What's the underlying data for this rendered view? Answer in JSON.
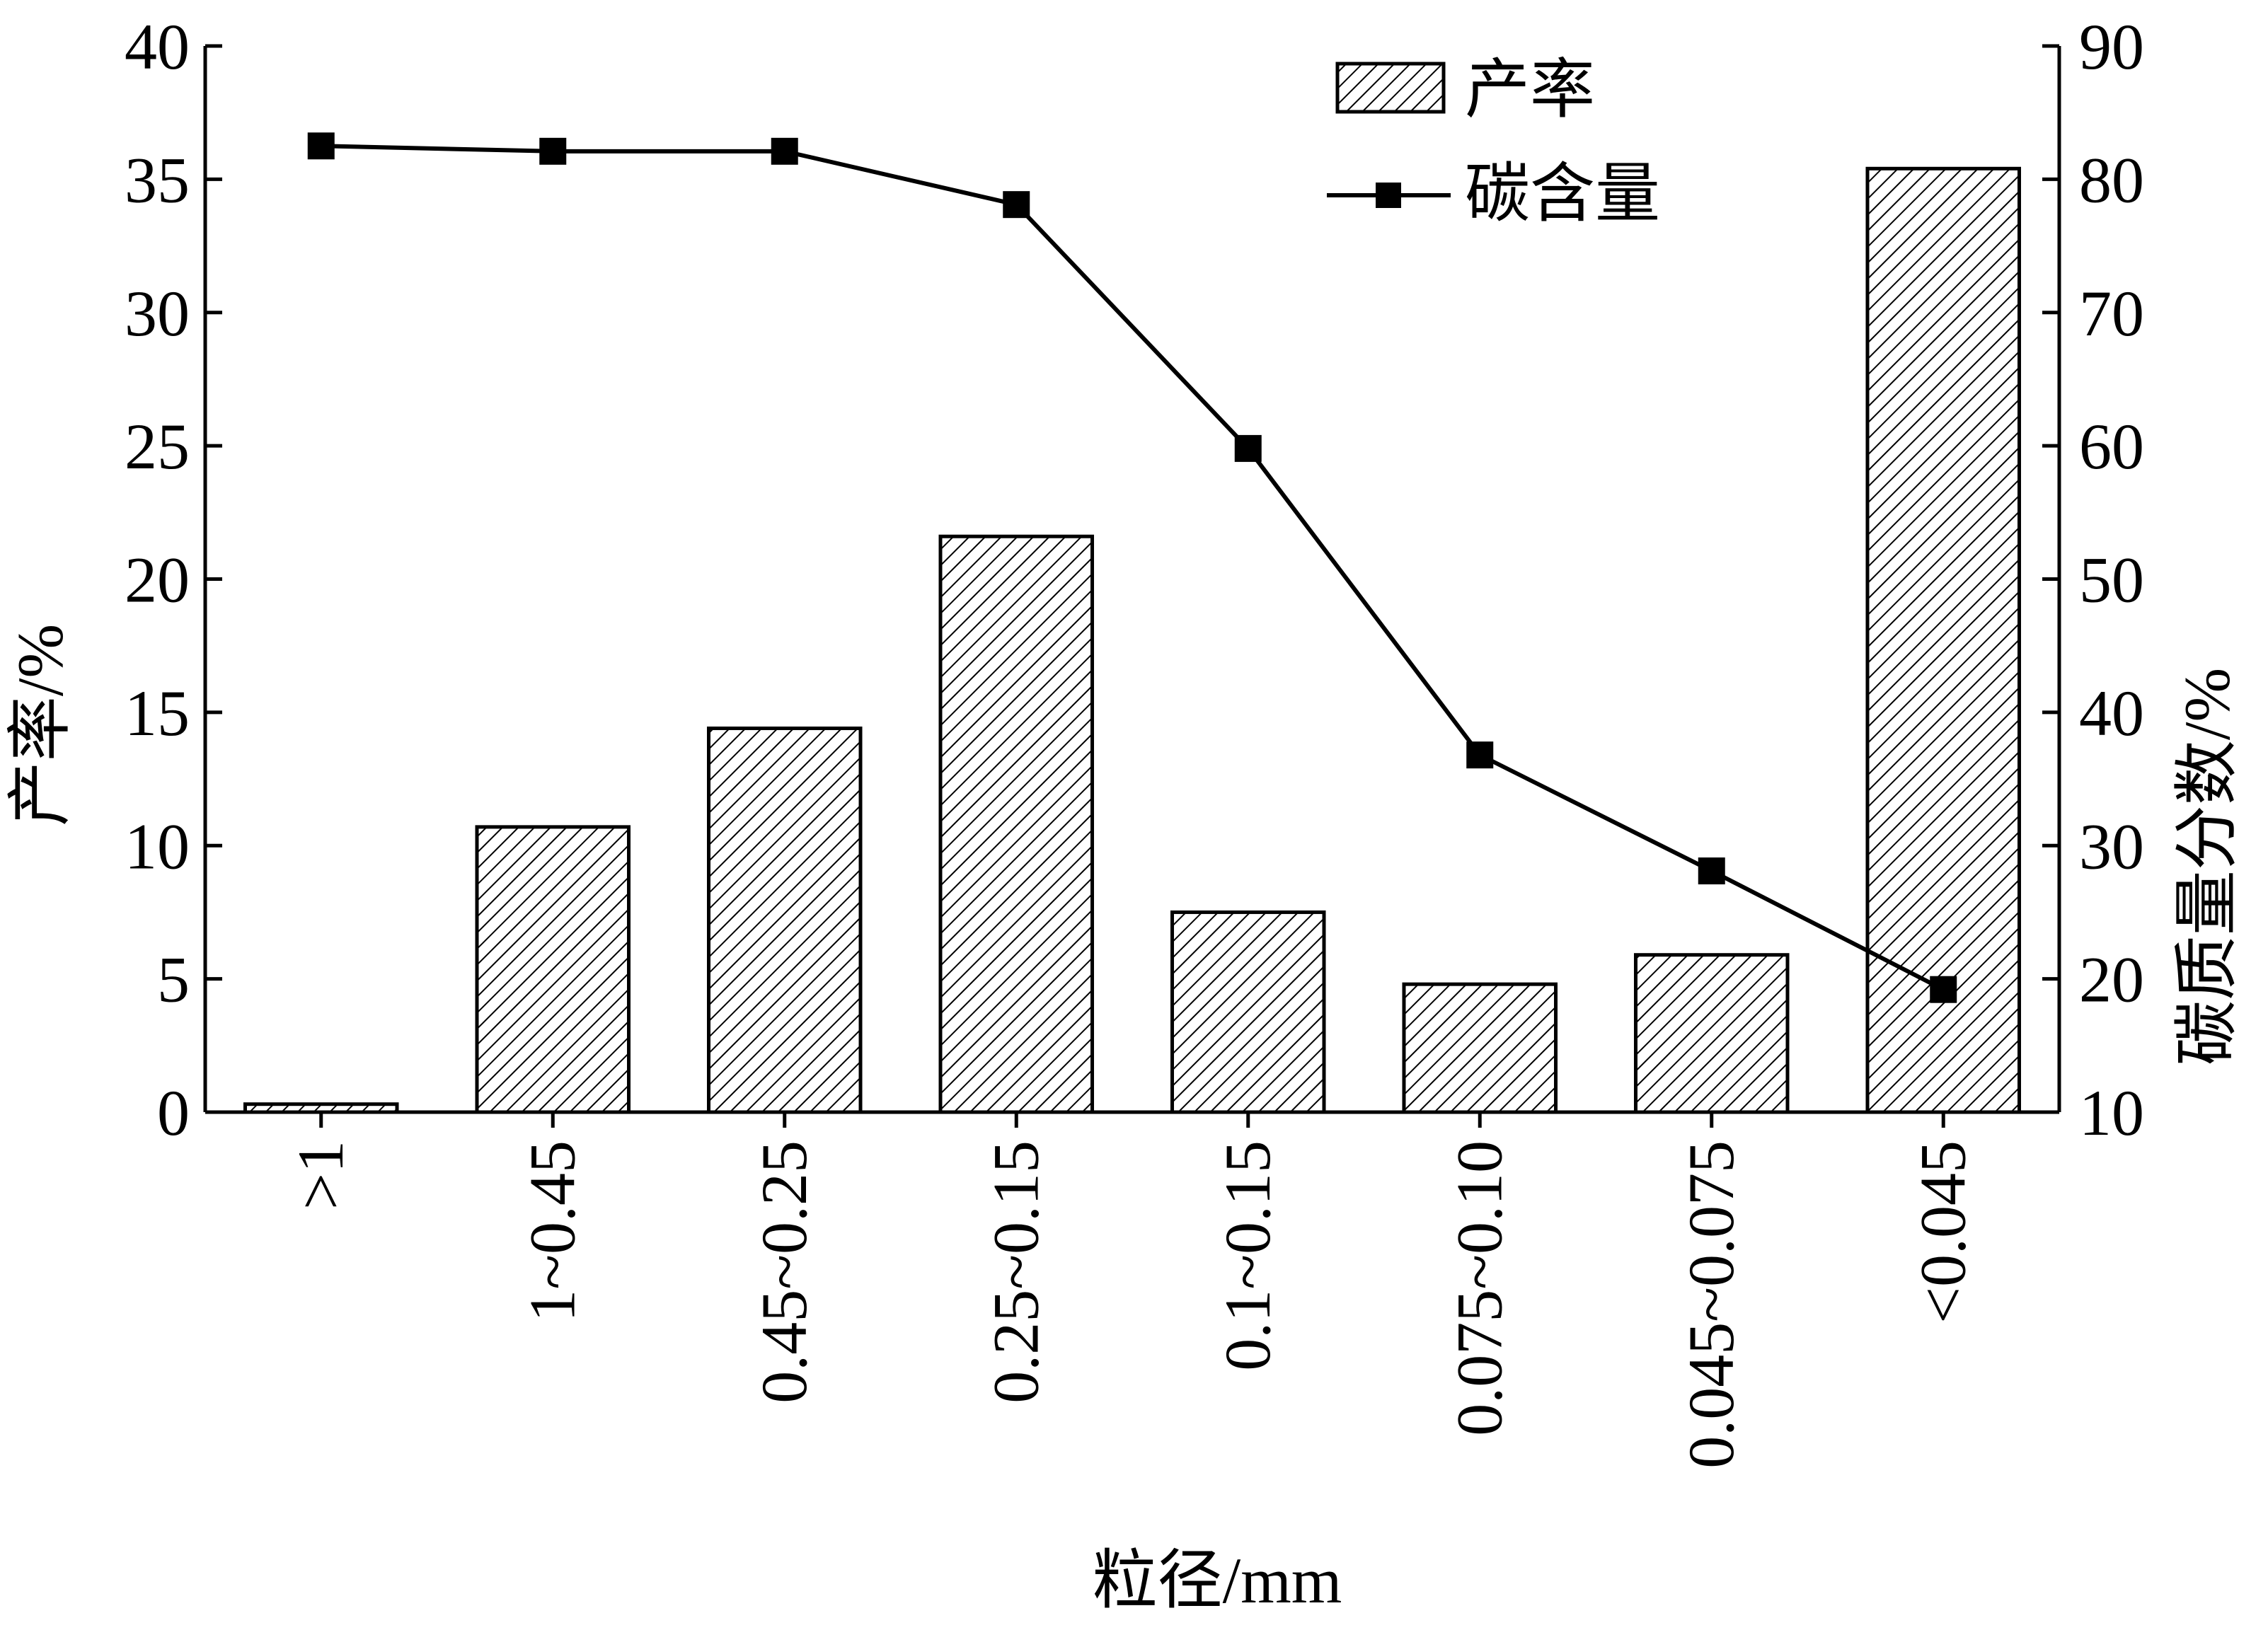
{
  "chart_data": {
    "type": "bar",
    "xlabel": "粒径/mm",
    "categories": [
      ">1",
      "1~0.45",
      "0.45~0.25",
      "0.25~0.15",
      "0.1~0.15",
      "0.075~0.10",
      "0.045~0.075",
      "<0.045"
    ],
    "series": [
      {
        "name": "产率",
        "type": "bar",
        "axis": "left",
        "values": [
          0.3,
          10.7,
          14.4,
          21.6,
          7.5,
          4.8,
          5.9,
          35.4
        ],
        "pattern": "diagonal-hatch"
      },
      {
        "name": "碳含量",
        "type": "line",
        "axis": "right",
        "marker": "square",
        "values": [
          82.5,
          82.1,
          82.1,
          78.1,
          59.8,
          36.8,
          28.1,
          19.2
        ]
      }
    ],
    "y_left": {
      "label": "产率/%",
      "ylim": [
        0,
        40
      ],
      "ticks": [
        "0",
        "5",
        "10",
        "15",
        "20",
        "25",
        "30",
        "35",
        "40"
      ]
    },
    "y_right": {
      "label": "碳质量分数/%",
      "ylim": [
        10,
        90
      ],
      "ticks": [
        "10",
        "20",
        "30",
        "40",
        "50",
        "60",
        "70",
        "80",
        "90"
      ]
    },
    "legend": {
      "position": "top-right",
      "entries": [
        "产率",
        "碳含量"
      ]
    },
    "grid": false,
    "colors": {
      "bar_fill": "#ffffff",
      "bar_hatch": "#000000",
      "line": "#000000",
      "axis": "#000000"
    }
  }
}
